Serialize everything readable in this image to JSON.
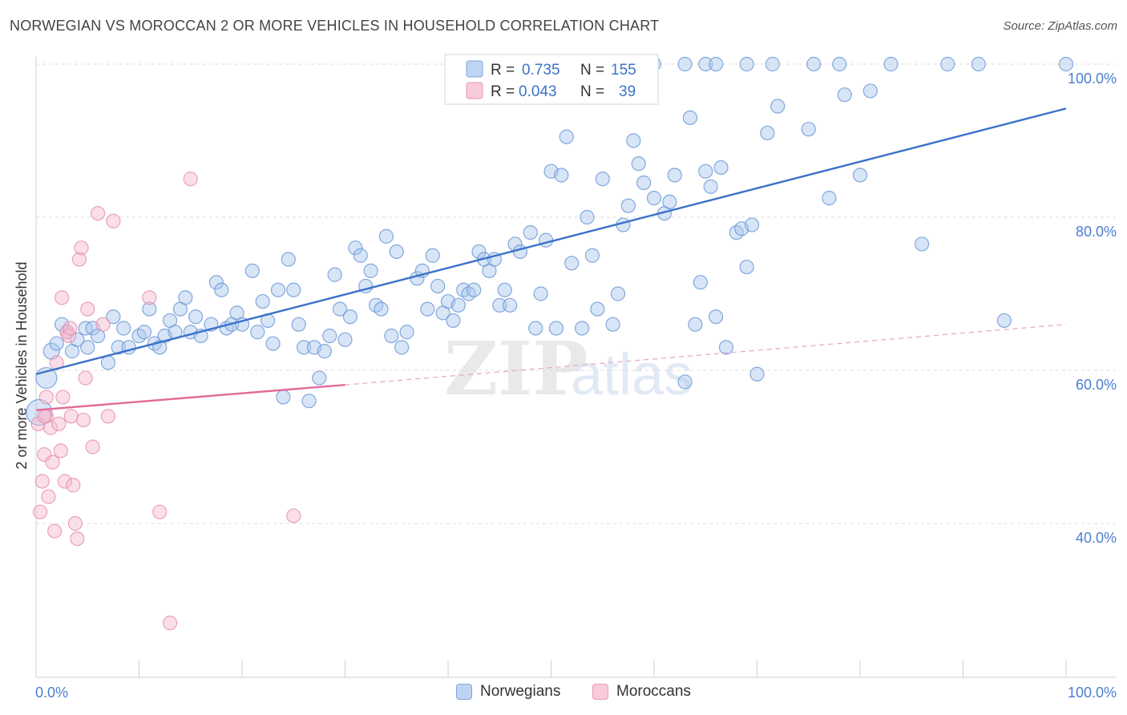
{
  "title": "NORWEGIAN VS MOROCCAN 2 OR MORE VEHICLES IN HOUSEHOLD CORRELATION CHART",
  "source": "Source: ZipAtlas.com",
  "colors": {
    "blue": "#4a7fd0",
    "blue_fill": "#a9c5ec",
    "pink": "#e26b96",
    "pink_fill": "#f6b7cb",
    "axis_label": "#4a7fd0"
  },
  "chart_data": {
    "type": "scatter",
    "ylabel": "2 or more Vehicles in Household",
    "x_tick_labels": [
      "0.0%",
      "100.0%"
    ],
    "y_tick_labels": [
      "40.0%",
      "60.0%",
      "80.0%",
      "100.0%"
    ],
    "xlim": [
      0,
      100
    ],
    "ylim": [
      20,
      102
    ],
    "legend": {
      "rows": [
        {
          "r_label": "R =",
          "r_value": "0.735",
          "n_label": "N =",
          "n_value": "155"
        },
        {
          "r_label": "R =",
          "r_value": "0.043",
          "n_label": "N =",
          "n_value": "39"
        }
      ]
    },
    "series": [
      {
        "name": "Norwegians",
        "trend": {
          "x0": 0,
          "y0": 59.5,
          "x1": 100,
          "y1": 94.2
        },
        "points": [
          [
            0.3,
            54.5
          ],
          [
            1,
            59
          ],
          [
            1.5,
            62.5
          ],
          [
            2,
            63.5
          ],
          [
            2.5,
            66
          ],
          [
            3,
            65
          ],
          [
            3.5,
            62.5
          ],
          [
            4,
            64
          ],
          [
            4.8,
            65.5
          ],
          [
            5,
            63
          ],
          [
            5.5,
            65.5
          ],
          [
            6,
            64.5
          ],
          [
            7,
            61
          ],
          [
            7.5,
            67
          ],
          [
            8,
            63
          ],
          [
            8.5,
            65.5
          ],
          [
            9,
            63
          ],
          [
            10,
            64.5
          ],
          [
            10.5,
            65
          ],
          [
            11,
            68
          ],
          [
            11.5,
            63.5
          ],
          [
            12,
            63
          ],
          [
            12.5,
            64.5
          ],
          [
            13,
            66.5
          ],
          [
            13.5,
            65
          ],
          [
            14,
            68
          ],
          [
            14.5,
            69.5
          ],
          [
            15,
            65
          ],
          [
            15.5,
            67
          ],
          [
            16,
            64.5
          ],
          [
            17,
            66
          ],
          [
            17.5,
            71.5
          ],
          [
            18,
            70.5
          ],
          [
            18.5,
            65.5
          ],
          [
            19,
            66
          ],
          [
            19.5,
            67.5
          ],
          [
            20,
            66
          ],
          [
            21,
            73
          ],
          [
            21.5,
            65
          ],
          [
            22,
            69
          ],
          [
            22.5,
            66.5
          ],
          [
            23,
            63.5
          ],
          [
            23.5,
            70.5
          ],
          [
            24,
            56.5
          ],
          [
            24.5,
            74.5
          ],
          [
            25,
            70.5
          ],
          [
            25.5,
            66
          ],
          [
            26,
            63
          ],
          [
            26.5,
            56
          ],
          [
            27,
            63
          ],
          [
            27.5,
            59
          ],
          [
            28,
            62.5
          ],
          [
            28.5,
            64.5
          ],
          [
            29,
            72.5
          ],
          [
            29.5,
            68
          ],
          [
            30,
            64
          ],
          [
            30.5,
            67
          ],
          [
            31,
            76
          ],
          [
            31.5,
            75
          ],
          [
            32,
            71
          ],
          [
            32.5,
            73
          ],
          [
            33,
            68.5
          ],
          [
            33.5,
            68
          ],
          [
            34,
            77.5
          ],
          [
            34.5,
            64.5
          ],
          [
            35,
            75.5
          ],
          [
            35.5,
            63
          ],
          [
            36,
            65
          ],
          [
            37,
            72
          ],
          [
            37.5,
            73
          ],
          [
            38,
            68
          ],
          [
            38.5,
            75
          ],
          [
            39,
            71
          ],
          [
            39.5,
            67.5
          ],
          [
            40,
            69
          ],
          [
            40.5,
            66.5
          ],
          [
            41,
            68.5
          ],
          [
            41.5,
            70.5
          ],
          [
            42,
            70
          ],
          [
            42.5,
            70.5
          ],
          [
            43,
            75.5
          ],
          [
            43.5,
            74.5
          ],
          [
            44,
            73
          ],
          [
            44.5,
            74.5
          ],
          [
            45,
            68.5
          ],
          [
            45.5,
            70.5
          ],
          [
            46,
            68.5
          ],
          [
            46.5,
            76.5
          ],
          [
            47,
            75.5
          ],
          [
            48,
            78
          ],
          [
            48.5,
            65.5
          ],
          [
            49,
            70
          ],
          [
            49.5,
            77
          ],
          [
            50,
            86
          ],
          [
            50.5,
            65.5
          ],
          [
            51,
            85.5
          ],
          [
            51.5,
            90.5
          ],
          [
            52,
            74
          ],
          [
            53,
            65.5
          ],
          [
            53.5,
            80
          ],
          [
            54,
            75
          ],
          [
            54.5,
            68
          ],
          [
            55,
            85
          ],
          [
            56,
            66
          ],
          [
            56.5,
            70
          ],
          [
            57,
            79
          ],
          [
            57.5,
            81.5
          ],
          [
            58,
            90
          ],
          [
            58.5,
            87
          ],
          [
            59,
            84.5
          ],
          [
            60,
            82.5
          ],
          [
            61,
            80.5
          ],
          [
            61.5,
            82
          ],
          [
            62,
            85.5
          ],
          [
            63,
            58.5
          ],
          [
            63.5,
            93
          ],
          [
            64,
            66
          ],
          [
            64.5,
            71.5
          ],
          [
            65,
            86
          ],
          [
            65.5,
            84
          ],
          [
            66,
            67
          ],
          [
            66.5,
            86.5
          ],
          [
            67,
            63
          ],
          [
            68,
            78
          ],
          [
            68.5,
            78.5
          ],
          [
            69,
            73.5
          ],
          [
            69.5,
            79
          ],
          [
            70,
            59.5
          ],
          [
            71,
            91
          ],
          [
            72,
            94.5
          ],
          [
            75,
            91.5
          ],
          [
            77,
            82.5
          ],
          [
            78.5,
            96
          ],
          [
            80,
            85.5
          ],
          [
            81,
            96.5
          ],
          [
            86,
            76.5
          ],
          [
            94,
            66.5
          ],
          [
            60,
            100
          ],
          [
            63,
            100
          ],
          [
            65,
            100
          ],
          [
            66,
            100
          ],
          [
            69,
            100
          ],
          [
            71.5,
            100
          ],
          [
            75.5,
            100
          ],
          [
            78,
            100
          ],
          [
            83,
            100
          ],
          [
            88.5,
            100
          ],
          [
            91.5,
            100
          ],
          [
            100,
            100
          ]
        ]
      },
      {
        "name": "Moroccans",
        "trend": {
          "x0": 0,
          "y0": 54.8,
          "x1": 30,
          "y1": 58.1,
          "dash_x1": 100,
          "dash_y1": 66
        },
        "points": [
          [
            0.2,
            53
          ],
          [
            0.4,
            41.5
          ],
          [
            0.6,
            45.5
          ],
          [
            0.8,
            49
          ],
          [
            1,
            54
          ],
          [
            1.2,
            43.5
          ],
          [
            1.4,
            52.5
          ],
          [
            1.6,
            48
          ],
          [
            1.8,
            39
          ],
          [
            2,
            61
          ],
          [
            2.2,
            53
          ],
          [
            2.4,
            49.5
          ],
          [
            2.6,
            56.5
          ],
          [
            2.8,
            45.5
          ],
          [
            3,
            65
          ],
          [
            3.2,
            64.5
          ],
          [
            3.4,
            54
          ],
          [
            3.6,
            45
          ],
          [
            3.8,
            40
          ],
          [
            4,
            38
          ],
          [
            4.2,
            74.5
          ],
          [
            4.4,
            76
          ],
          [
            4.6,
            53.5
          ],
          [
            4.8,
            59
          ],
          [
            5,
            68
          ],
          [
            5.5,
            50
          ],
          [
            6,
            80.5
          ],
          [
            6.5,
            66
          ],
          [
            7,
            54
          ],
          [
            7.5,
            79.5
          ],
          [
            11,
            69.5
          ],
          [
            12,
            41.5
          ],
          [
            13,
            27
          ],
          [
            15,
            85
          ],
          [
            25,
            41
          ],
          [
            1,
            56.5
          ],
          [
            2.5,
            69.5
          ],
          [
            3.3,
            65.5
          ],
          [
            0.8,
            54
          ]
        ]
      }
    ]
  }
}
